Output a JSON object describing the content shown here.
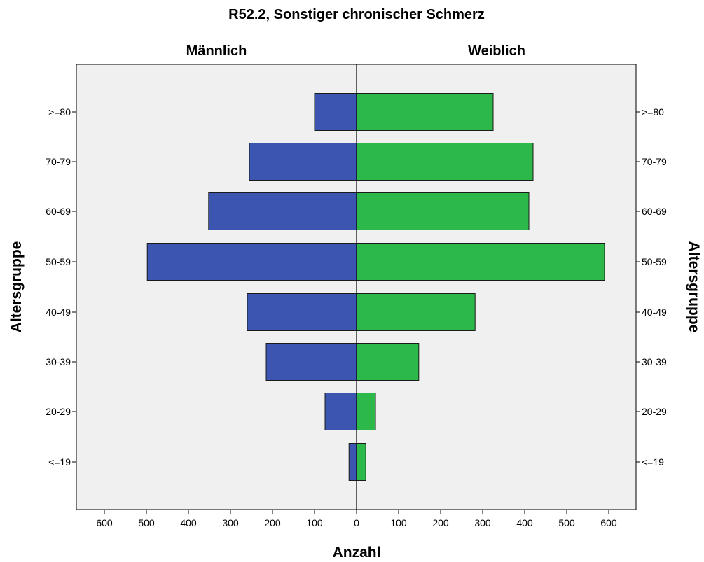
{
  "chart_data": {
    "type": "bar",
    "orientation": "horizontal-pyramid",
    "title": "R52.2, Sonstiger chronischer Schmerz",
    "categories": [
      "<=19",
      "20-29",
      "30-39",
      "40-49",
      "50-59",
      "60-69",
      "70-79",
      ">=80"
    ],
    "series": [
      {
        "name": "Männlich",
        "side": "left",
        "color": "#3b55b0",
        "values": [
          18,
          75,
          215,
          260,
          498,
          352,
          255,
          100
        ]
      },
      {
        "name": "Weiblich",
        "side": "right",
        "color": "#2db84a",
        "values": [
          22,
          45,
          148,
          282,
          590,
          410,
          420,
          325
        ]
      }
    ],
    "xlabel": "Anzahl",
    "ylabel": "Altersgruppe",
    "xlim": [
      0,
      660
    ],
    "xticks": [
      600,
      500,
      400,
      300,
      200,
      100,
      0,
      100,
      200,
      300,
      400,
      500,
      600
    ],
    "grid": false,
    "plot_background": "#f0f0f0"
  }
}
